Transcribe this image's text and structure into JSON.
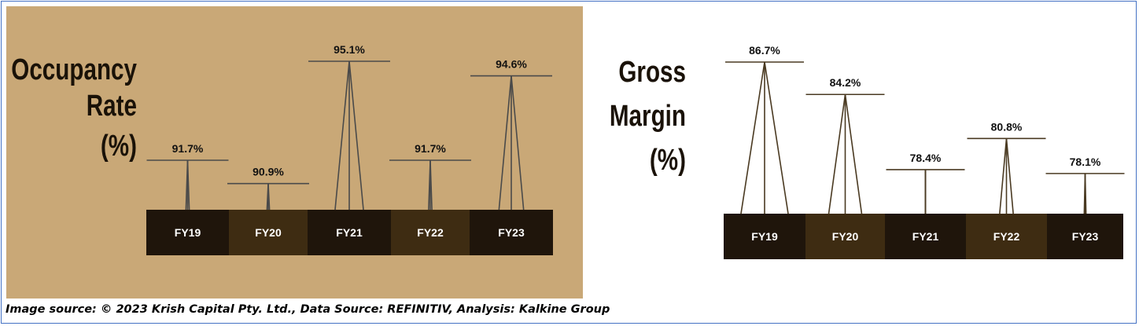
{
  "source": "Image source: © 2023 Krish Capital Pty. Ltd., Data Source: REFINITIV, Analysis: Kalkine Group",
  "chart_data": [
    {
      "type": "bar",
      "title_lines": [
        "Occupancy",
        "Rate",
        "(%)"
      ],
      "categories": [
        "FY19",
        "FY20",
        "FY21",
        "FY22",
        "FY23"
      ],
      "values": [
        91.7,
        90.9,
        95.1,
        91.7,
        94.6
      ],
      "value_labels": [
        "91.7%",
        "90.9%",
        "95.1%",
        "91.7%",
        "94.6%"
      ],
      "background": "#c9a877",
      "stroke": "#4a4a4a",
      "category_colors": [
        "#1f150b",
        "#3e2c12",
        "#1f150b",
        "#3e2c12",
        "#1f150b"
      ]
    },
    {
      "type": "bar",
      "title_lines": [
        "Gross",
        "Margin",
        "(%)"
      ],
      "categories": [
        "FY19",
        "FY20",
        "FY21",
        "FY22",
        "FY23"
      ],
      "values": [
        86.7,
        84.2,
        78.4,
        80.8,
        78.1
      ],
      "value_labels": [
        "86.7%",
        "84.2%",
        "78.4%",
        "80.8%",
        "78.1%"
      ],
      "background": "#ffffff",
      "stroke": "#4a3a22",
      "category_colors": [
        "#1f150b",
        "#3e2c12",
        "#1f150b",
        "#3e2c12",
        "#1f150b"
      ]
    }
  ]
}
